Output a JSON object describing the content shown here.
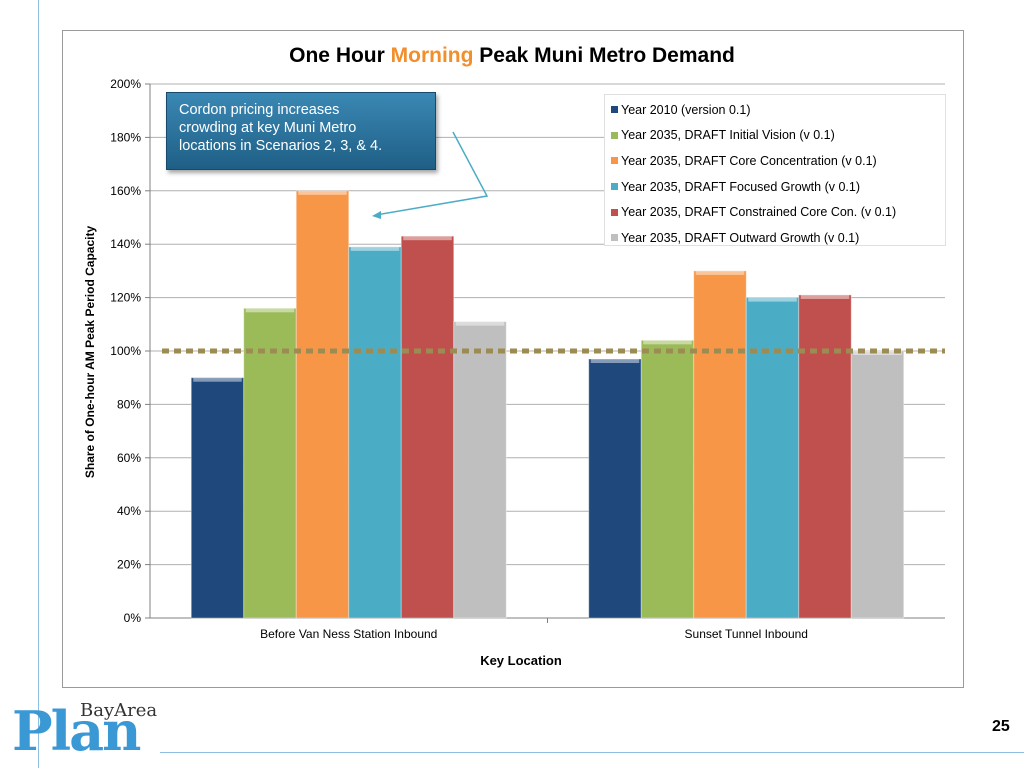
{
  "slide": {
    "page_number": "25",
    "logo_top": "BayArea",
    "logo_main": "Plan",
    "callout_text": "Cordon pricing increases\ncrowding at key Muni Metro\nlocations in Scenarios 2, 3, & 4."
  },
  "chart_data": {
    "type": "bar",
    "title_parts": [
      {
        "text": "One Hour ",
        "color": "#000000"
      },
      {
        "text": "Morning",
        "color": "#f28e2b"
      },
      {
        "text": " Peak Muni Metro Demand",
        "color": "#000000"
      }
    ],
    "title": "One Hour Morning Peak Muni Metro Demand",
    "xlabel": "Key Location",
    "ylabel": "Share of One-hour AM Peak Period Capacity",
    "categories": [
      "Before Van Ness Station Inbound",
      "Sunset Tunnel Inbound"
    ],
    "ylim": [
      0,
      200
    ],
    "yticks": [
      "0%",
      "20%",
      "40%",
      "60%",
      "80%",
      "100%",
      "120%",
      "140%",
      "160%",
      "180%",
      "200%"
    ],
    "reference_line": {
      "value": 100,
      "color": "#9c8b52",
      "style": "dotted"
    },
    "grid": true,
    "legend_position": "top-right",
    "series": [
      {
        "name": "Year 2010 (version 0.1)",
        "color": "#1f497d",
        "values": [
          90,
          97
        ]
      },
      {
        "name": "Year 2035, DRAFT Initial Vision (v 0.1)",
        "color": "#9bbb59",
        "values": [
          116,
          104
        ]
      },
      {
        "name": "Year 2035, DRAFT Core Concentration (v 0.1)",
        "color": "#f79646",
        "values": [
          160,
          130
        ]
      },
      {
        "name": "Year 2035, DRAFT Focused Growth (v 0.1)",
        "color": "#4bacc6",
        "values": [
          139,
          120
        ]
      },
      {
        "name": "Year 2035, DRAFT Constrained Core Con. (v 0.1)",
        "color": "#c0504d",
        "values": [
          143,
          121
        ]
      },
      {
        "name": "Year 2035, DRAFT Outward Growth (v 0.1)",
        "color": "#bfbfbf",
        "values": [
          111,
          100
        ]
      }
    ]
  }
}
